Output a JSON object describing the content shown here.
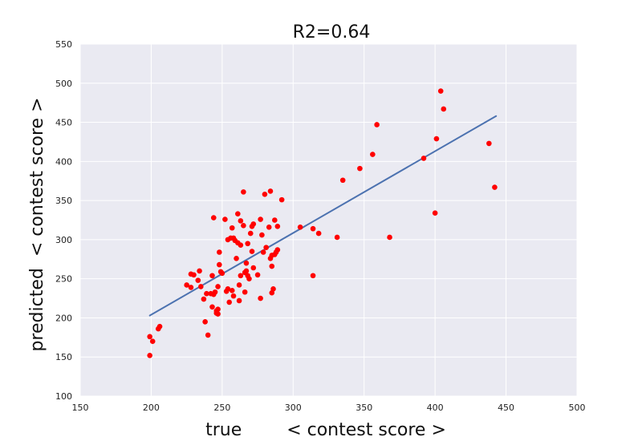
{
  "chart_data": {
    "type": "scatter",
    "title": "R2=0.64",
    "xlabel": "true        < contest score >",
    "ylabel": "predicted  < contest score >",
    "xlim": [
      150,
      500
    ],
    "ylim": [
      100,
      550
    ],
    "xticks": [
      "150",
      "200",
      "250",
      "300",
      "350",
      "400",
      "450",
      "500"
    ],
    "yticks": [
      "100",
      "150",
      "200",
      "250",
      "300",
      "350",
      "400",
      "450",
      "500",
      "550"
    ],
    "grid": true,
    "colors": {
      "background": "#eaeaf2",
      "grid": "#ffffff",
      "points": "#ff0000",
      "fit_line": "#4c72b0"
    },
    "fit_line": {
      "x": [
        199,
        443
      ],
      "y": [
        203,
        458
      ]
    },
    "points": [
      [
        199,
        176
      ],
      [
        199,
        152
      ],
      [
        201,
        170
      ],
      [
        205,
        186
      ],
      [
        206,
        189
      ],
      [
        225,
        242
      ],
      [
        228,
        256
      ],
      [
        228,
        239
      ],
      [
        230,
        255
      ],
      [
        233,
        248
      ],
      [
        234,
        260
      ],
      [
        235,
        240
      ],
      [
        237,
        224
      ],
      [
        238,
        195
      ],
      [
        239,
        231
      ],
      [
        240,
        178
      ],
      [
        242,
        231
      ],
      [
        243,
        214
      ],
      [
        243,
        254
      ],
      [
        244,
        230
      ],
      [
        244,
        328
      ],
      [
        245,
        233
      ],
      [
        246,
        209
      ],
      [
        246,
        206
      ],
      [
        247,
        211
      ],
      [
        247,
        205
      ],
      [
        247,
        240
      ],
      [
        248,
        268
      ],
      [
        248,
        284
      ],
      [
        249,
        259
      ],
      [
        250,
        257
      ],
      [
        252,
        326
      ],
      [
        253,
        234
      ],
      [
        254,
        237
      ],
      [
        254,
        300
      ],
      [
        255,
        220
      ],
      [
        256,
        302
      ],
      [
        257,
        315
      ],
      [
        257,
        235
      ],
      [
        258,
        228
      ],
      [
        258,
        302
      ],
      [
        259,
        299
      ],
      [
        260,
        276
      ],
      [
        261,
        333
      ],
      [
        261,
        296
      ],
      [
        262,
        222
      ],
      [
        262,
        242
      ],
      [
        263,
        324
      ],
      [
        263,
        293
      ],
      [
        263,
        254
      ],
      [
        265,
        318
      ],
      [
        265,
        361
      ],
      [
        266,
        258
      ],
      [
        266,
        233
      ],
      [
        267,
        270
      ],
      [
        267,
        260
      ],
      [
        268,
        295
      ],
      [
        268,
        254
      ],
      [
        269,
        250
      ],
      [
        270,
        308
      ],
      [
        271,
        317
      ],
      [
        271,
        285
      ],
      [
        272,
        320
      ],
      [
        272,
        264
      ],
      [
        275,
        255
      ],
      [
        277,
        225
      ],
      [
        277,
        326
      ],
      [
        278,
        306
      ],
      [
        279,
        284
      ],
      [
        280,
        358
      ],
      [
        281,
        290
      ],
      [
        283,
        316
      ],
      [
        284,
        276
      ],
      [
        284,
        362
      ],
      [
        285,
        266
      ],
      [
        285,
        232
      ],
      [
        285,
        280
      ],
      [
        286,
        237
      ],
      [
        287,
        281
      ],
      [
        287,
        325
      ],
      [
        288,
        284
      ],
      [
        289,
        317
      ],
      [
        289,
        287
      ],
      [
        292,
        351
      ],
      [
        305,
        316
      ],
      [
        314,
        314
      ],
      [
        314,
        254
      ],
      [
        318,
        308
      ],
      [
        331,
        303
      ],
      [
        335,
        376
      ],
      [
        347,
        391
      ],
      [
        356,
        409
      ],
      [
        359,
        447
      ],
      [
        368,
        303
      ],
      [
        392,
        404
      ],
      [
        400,
        334
      ],
      [
        401,
        429
      ],
      [
        404,
        490
      ],
      [
        406,
        467
      ],
      [
        438,
        423
      ],
      [
        442,
        367
      ]
    ]
  }
}
